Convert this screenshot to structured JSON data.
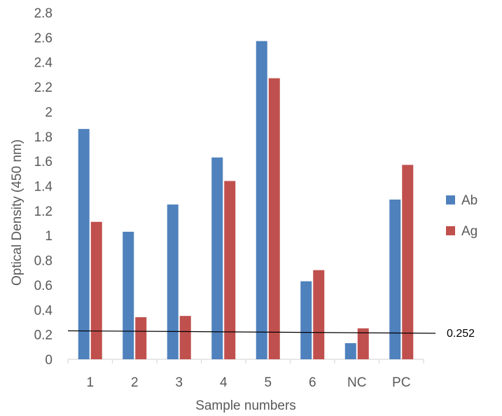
{
  "chart_data": {
    "type": "bar",
    "title": "",
    "xlabel": "Sample numbers",
    "ylabel": "Optical Density (450 nm)",
    "ylim": [
      0,
      2.8
    ],
    "yticks": [
      "0",
      "0.2",
      "0.4",
      "0.6",
      "0.8",
      "1",
      "1.2",
      "1.4",
      "1.6",
      "1.8",
      "2",
      "2.2",
      "2.4",
      "2.6",
      "2.8"
    ],
    "categories": [
      "1",
      "2",
      "3",
      "4",
      "5",
      "6",
      "NC",
      "PC"
    ],
    "series": [
      {
        "name": "Ab",
        "color": "#4f81bd",
        "values": [
          1.86,
          1.03,
          1.25,
          1.63,
          2.57,
          0.63,
          0.13,
          1.29
        ]
      },
      {
        "name": "Ag",
        "color": "#c0504d",
        "values": [
          1.11,
          0.34,
          0.35,
          1.44,
          2.27,
          0.72,
          0.25,
          1.57
        ]
      }
    ],
    "grid": false,
    "legend": "right",
    "reference_line": {
      "label": "0.252",
      "y_start": 0.23,
      "y_end": 0.21,
      "color": "#000000"
    }
  }
}
